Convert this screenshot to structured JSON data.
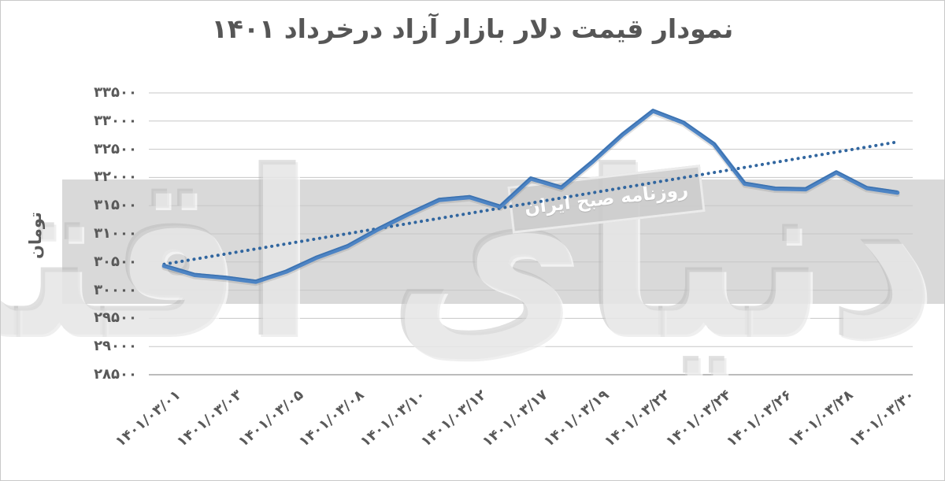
{
  "title": "نمودار قیمت دلار بازار آزاد درخرداد ۱۴۰۱",
  "y_axis": {
    "title": "تومان",
    "tick_labels_top_to_bottom": [
      "۳۳۵۰۰",
      "۳۳۰۰۰",
      "۳۲۵۰۰",
      "۳۲۰۰۰",
      "۳۱۵۰۰",
      "۳۱۰۰۰",
      "۳۰۵۰۰",
      "۳۰۰۰۰",
      "۲۹۵۰۰",
      "۲۹۰۰۰",
      "۲۸۵۰۰"
    ]
  },
  "watermark": {
    "big_text": "دنیای اقتصاد",
    "stamp_text": "روزنامه صبح ایران"
  },
  "colors": {
    "line": "#4d84c4",
    "line_top_edge": "#2f64a0",
    "line_shadow": "rgba(120,120,120,0.22)",
    "trendline": "#31669f",
    "band": "#d9d9d9",
    "grid": "#c7c7c7",
    "axis": "#a6a6a6",
    "tick_text": "#595959",
    "title_text": "#565656"
  },
  "chart_data": {
    "type": "line",
    "title": "نمودار قیمت دلار بازار آزاد درخرداد ۱۴۰۱",
    "ylabel": "تومان",
    "ylim": [
      28500,
      33500
    ],
    "y_tick_step": 500,
    "grid": true,
    "legend": "none",
    "x_tick_labels": [
      "۱۴۰۱/۰۳/۰۱",
      "۱۴۰۱/۰۳/۰۳",
      "۱۴۰۱/۰۳/۰۵",
      "۱۴۰۱/۰۳/۰۸",
      "۱۴۰۱/۰۳/۱۰",
      "۱۴۰۱/۰۳/۱۲",
      "۱۴۰۱/۰۳/۱۷",
      "۱۴۰۱/۰۳/۱۹",
      "۱۴۰۱/۰۳/۲۲",
      "۱۴۰۱/۰۳/۲۴",
      "۱۴۰۱/۰۳/۲۶",
      "۱۴۰۱/۰۳/۲۸",
      "۱۴۰۱/۰۳/۳۰"
    ],
    "x_label_interval": 2,
    "series": [
      {
        "name": "free-market-dollar-price-toman",
        "style": "solid",
        "values": [
          30430,
          30270,
          30220,
          30150,
          30330,
          30580,
          30780,
          31080,
          31350,
          31600,
          31650,
          31480,
          31980,
          31820,
          32270,
          32760,
          33180,
          32970,
          32590,
          31890,
          31800,
          31790,
          32090,
          31810,
          31730
        ]
      }
    ],
    "trendline": {
      "style": "dotted",
      "start_value": 30460,
      "end_value": 32630
    }
  }
}
